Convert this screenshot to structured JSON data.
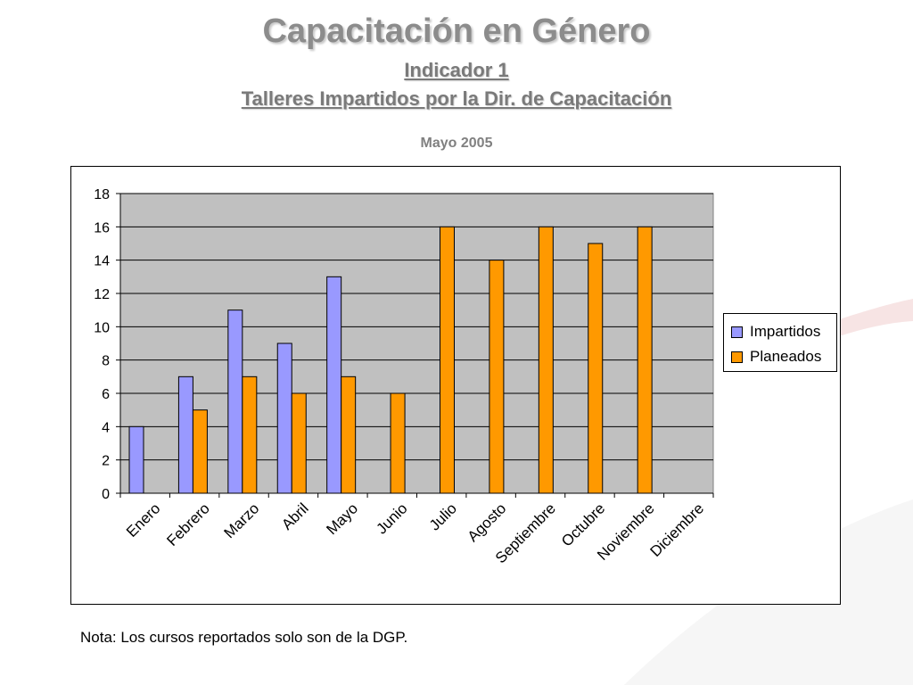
{
  "slide": {
    "title": "Capacitación en Género",
    "subtitle_line1": "Indicador 1",
    "subtitle_line2": "Talleres Impartidos por la Dir. de Capacitación",
    "date": "Mayo 2005",
    "note": "Nota: Los cursos reportados solo son de la DGP."
  },
  "chart_data": {
    "type": "bar",
    "categories": [
      "Enero",
      "Febrero",
      "Marzo",
      "Abril",
      "Mayo",
      "Junio",
      "Julio",
      "Agosto",
      "Septiembre",
      "Octubre",
      "Noviembre",
      "Diciembre"
    ],
    "series": [
      {
        "name": "Impartidos",
        "color": "#9999ff",
        "values": [
          4,
          7,
          11,
          9,
          13,
          null,
          null,
          null,
          null,
          null,
          null,
          null
        ]
      },
      {
        "name": "Planeados",
        "color": "#ff9900",
        "values": [
          null,
          5,
          7,
          6,
          7,
          6,
          16,
          14,
          16,
          15,
          16,
          null
        ]
      }
    ],
    "ylim": [
      0,
      18
    ],
    "yticks": [
      0,
      2,
      4,
      6,
      8,
      10,
      12,
      14,
      16,
      18
    ],
    "grid": true,
    "plot_background": "#c0c0c0",
    "legend_position": "right"
  }
}
